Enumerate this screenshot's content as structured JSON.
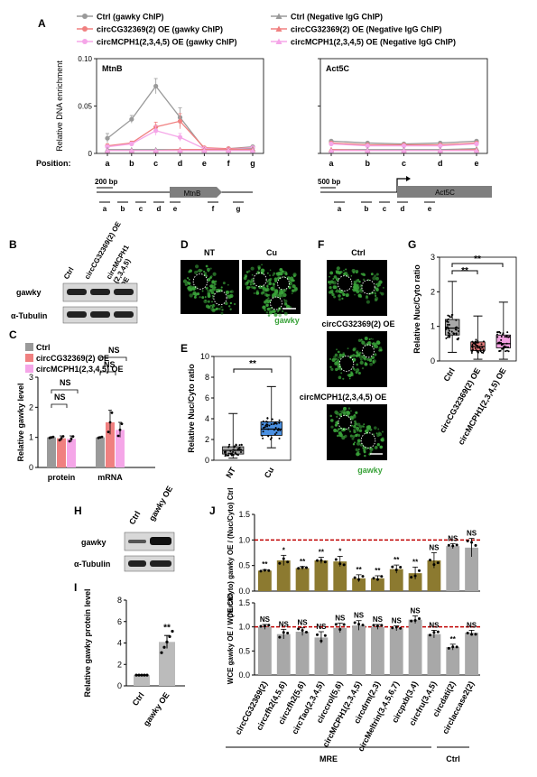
{
  "panels": {
    "A": "A",
    "B": "B",
    "C": "C",
    "D": "D",
    "E": "E",
    "F": "F",
    "G": "G",
    "H": "H",
    "I": "I",
    "J": "J"
  },
  "colors": {
    "ctrl": "#9a9a9a",
    "circ32369": "#f08080",
    "circMCPH1": "#f5a6e8",
    "gfp": "#3aa33a",
    "olive": "#8c7a30",
    "red_dash": "#c00000",
    "blue_box": "#4a90e2",
    "grey_box": "#a8a8a8",
    "pink_box": "#f2a0e0",
    "red_box": "#e77b7b"
  },
  "panelA": {
    "legend": [
      {
        "label": "Ctrl (gawky ChIP)",
        "color": "#9a9a9a",
        "marker": "circle"
      },
      {
        "label": "circCG32369(2) OE (gawky ChIP)",
        "color": "#f08080",
        "marker": "circle"
      },
      {
        "label": "circMCPH1(2,3,4,5) OE (gawky ChIP)",
        "color": "#f5a6e8",
        "marker": "circle"
      },
      {
        "label": "Ctrl (Negative IgG ChIP)",
        "color": "#9a9a9a",
        "marker": "triangle"
      },
      {
        "label": "circCG32369(2) OE (Negative IgG ChIP)",
        "color": "#f08080",
        "marker": "triangle"
      },
      {
        "label": "circMCPH1(2,3,4,5) OE (Negative IgG ChIP)",
        "color": "#f5a6e8",
        "marker": "triangle"
      }
    ],
    "position_label": "Position:",
    "scale_left": "200 bp",
    "scale_right": "500 bp",
    "gene_left": "MtnB",
    "gene_right": "Act5C"
  },
  "panelB": {
    "labels": [
      "Ctrl",
      "circCG32369(2) OE",
      "circMCPH1 (2,3,4,5) OE"
    ],
    "rows": [
      "gawky",
      "α-Tubulin"
    ]
  },
  "panelD": {
    "labels": [
      "NT",
      "Cu"
    ],
    "stain": "gawky"
  },
  "panelF": {
    "labels": [
      "Ctrl",
      "circCG32369(2) OE",
      "circMCPH1(2,3,4,5) OE"
    ],
    "stain": "gawky"
  },
  "panelH": {
    "labels": [
      "Ctrl",
      "gawky OE"
    ],
    "rows": [
      "gawky",
      "α-Tubulin"
    ]
  },
  "chart_data": [
    {
      "id": "A-left",
      "type": "line",
      "title": "MtnB",
      "ylabel": "Relative DNA enrichment",
      "ylim": [
        0,
        0.1
      ],
      "x": [
        "a",
        "b",
        "c",
        "d",
        "e",
        "f",
        "g"
      ],
      "series": [
        {
          "name": "Ctrl (gawky ChIP)",
          "values": [
            0.016,
            0.036,
            0.071,
            0.038,
            0.005,
            0.005,
            0.007
          ]
        },
        {
          "name": "circCG32369(2) OE (gawky ChIP)",
          "values": [
            0.008,
            0.011,
            0.028,
            0.034,
            0.006,
            0.005,
            0.006
          ]
        },
        {
          "name": "circMCPH1(2,3,4,5) OE (gawky ChIP)",
          "values": [
            0.007,
            0.01,
            0.024,
            0.017,
            0.005,
            0.004,
            0.006
          ]
        },
        {
          "name": "Ctrl (Negative IgG ChIP)",
          "values": [
            0.004,
            0.004,
            0.004,
            0.004,
            0.004,
            0.004,
            0.005
          ]
        },
        {
          "name": "circCG32369(2) OE (Negative IgG ChIP)",
          "values": [
            0.003,
            0.003,
            0.003,
            0.004,
            0.004,
            0.004,
            0.004
          ]
        },
        {
          "name": "circMCPH1(2,3,4,5) OE (Negative IgG ChIP)",
          "values": [
            0.003,
            0.003,
            0.003,
            0.003,
            0.003,
            0.003,
            0.003
          ]
        }
      ],
      "errors": [
        [
          0.005,
          0.004,
          0.008,
          0.01,
          0.001,
          0.001,
          0.001
        ],
        [
          0.002,
          0.002,
          0.005,
          0.008,
          0.001,
          0.001,
          0.001
        ],
        [
          0.002,
          0.002,
          0.005,
          0.004,
          0.001,
          0.001,
          0.001
        ],
        [
          0,
          0,
          0,
          0,
          0,
          0,
          0
        ],
        [
          0,
          0,
          0,
          0,
          0,
          0,
          0
        ],
        [
          0,
          0,
          0,
          0,
          0,
          0,
          0
        ]
      ],
      "yticks": [
        "0",
        "0.05",
        "0.10"
      ]
    },
    {
      "id": "A-right",
      "type": "line",
      "title": "Act5C",
      "ylim": [
        0,
        0.1
      ],
      "x": [
        "a",
        "b",
        "c",
        "d",
        "e"
      ],
      "series": [
        {
          "name": "Ctrl (gawky ChIP)",
          "values": [
            0.013,
            0.011,
            0.01,
            0.011,
            0.013
          ]
        },
        {
          "name": "circCG32369(2) OE (gawky ChIP)",
          "values": [
            0.011,
            0.009,
            0.009,
            0.009,
            0.011
          ]
        },
        {
          "name": "circMCPH1(2,3,4,5) OE (gawky ChIP)",
          "values": [
            0.01,
            0.008,
            0.008,
            0.008,
            0.01
          ]
        },
        {
          "name": "Ctrl (Negative IgG ChIP)",
          "values": [
            0.004,
            0.004,
            0.004,
            0.004,
            0.005
          ]
        },
        {
          "name": "circCG32369(2) OE (Negative IgG ChIP)",
          "values": [
            0.004,
            0.003,
            0.003,
            0.003,
            0.004
          ]
        },
        {
          "name": "circMCPH1(2,3,4,5) OE (Negative IgG ChIP)",
          "values": [
            0.003,
            0.003,
            0.003,
            0.003,
            0.003
          ]
        }
      ]
    },
    {
      "id": "C",
      "type": "bar",
      "ylabel": "Relative gawky level",
      "ylim": [
        0,
        3
      ],
      "yticks": [
        "0",
        "1",
        "2",
        "3"
      ],
      "categories": [
        "protein",
        "mRNA"
      ],
      "series": [
        {
          "name": "Ctrl",
          "values": [
            1.0,
            1.0
          ]
        },
        {
          "name": "circCG32369(2) OE",
          "values": [
            0.97,
            1.5
          ]
        },
        {
          "name": "circMCPH1(2,3,4,5) OE",
          "values": [
            0.95,
            1.25
          ]
        }
      ],
      "errors": [
        [
          0.02,
          0.02
        ],
        [
          0.08,
          0.4
        ],
        [
          0.1,
          0.25
        ]
      ],
      "annotations": [
        "NS",
        "NS",
        "NS",
        "NS"
      ]
    },
    {
      "id": "E",
      "type": "box",
      "ylabel": "Relative Nuc/Cyto ratio",
      "ylim": [
        0,
        10
      ],
      "yticks": [
        "0",
        "2",
        "4",
        "6",
        "8",
        "10"
      ],
      "categories": [
        "NT",
        "Cu"
      ],
      "boxes": [
        {
          "min": 0.2,
          "q1": 0.6,
          "median": 0.95,
          "q3": 1.3,
          "max": 4.5
        },
        {
          "min": 1.2,
          "q1": 2.4,
          "median": 3.0,
          "q3": 3.7,
          "max": 7.1
        }
      ],
      "annotations": [
        "**"
      ]
    },
    {
      "id": "G",
      "type": "box",
      "ylabel": "Relative Nuc/Cyto ratio",
      "ylim": [
        0,
        3
      ],
      "yticks": [
        "0",
        "1",
        "2",
        "3"
      ],
      "categories": [
        "Ctrl",
        "circCG32369(2) OE",
        "circMCPH1(2,3,4,5) OE"
      ],
      "boxes": [
        {
          "min": 0.25,
          "q1": 0.75,
          "median": 0.95,
          "q3": 1.2,
          "max": 2.3
        },
        {
          "min": 0.05,
          "q1": 0.3,
          "median": 0.42,
          "q3": 0.55,
          "max": 1.3
        },
        {
          "min": 0.05,
          "q1": 0.38,
          "median": 0.5,
          "q3": 0.75,
          "max": 1.7
        }
      ],
      "annotations": [
        "**",
        "**"
      ]
    },
    {
      "id": "I",
      "type": "bar",
      "ylabel": "Relative gawky protein level",
      "ylim": [
        0,
        8
      ],
      "yticks": [
        "0",
        "2",
        "4",
        "6",
        "8"
      ],
      "categories": [
        "Ctrl",
        "gawky OE"
      ],
      "values": [
        1.0,
        4.1
      ],
      "errors": [
        0.0,
        0.6
      ],
      "annotations": [
        "**"
      ]
    },
    {
      "id": "J-top",
      "type": "bar",
      "ylabel": "(Nuc/Cyto) gawky OE / (Nuc/Cyto) Ctrl",
      "ylim": [
        0,
        1.5
      ],
      "yticks": [
        "0.0",
        "0.5",
        "1.0",
        "1.5"
      ],
      "categories": [
        "circCG32369(2)",
        "circzfh2(4,5,6)",
        "circzfh2(5,6)",
        "circTao(2,3,4,5)",
        "circcrol(5,6)",
        "circMCPH1(2,3,4,5)",
        "circdrm(2,3)",
        "circMeltrin(3,4,5,6,7)",
        "circpxb(3,4)",
        "circfru(3,4,5)",
        "circdati(2)",
        "circlaccase2(2)"
      ],
      "values": [
        0.4,
        0.6,
        0.45,
        0.6,
        0.58,
        0.25,
        0.25,
        0.43,
        0.35,
        0.6,
        0.88,
        0.85
      ],
      "errors": [
        0.02,
        0.1,
        0.03,
        0.06,
        0.1,
        0.07,
        0.05,
        0.08,
        0.12,
        0.15,
        0.05,
        0.18
      ],
      "annotations": [
        "**",
        "*",
        "**",
        "**",
        "*",
        "**",
        "**",
        "**",
        "**",
        "NS",
        "NS",
        "NS"
      ],
      "reference_line": 1.0
    },
    {
      "id": "J-bottom",
      "type": "bar",
      "ylabel": "WCE gawky OE / WCE Ctrl",
      "ylim": [
        0,
        1.5
      ],
      "yticks": [
        "0.0",
        "0.5",
        "1.0",
        "1.5"
      ],
      "categories": [
        "circCG32369(2)",
        "circzfh2(4,5,6)",
        "circzfh2(5,6)",
        "circTao(2,3,4,5)",
        "circcrol(5,6)",
        "circMCPH1(2,3,4,5)",
        "circdrm(2,3)",
        "circMeltrin(3,4,5,6,7)",
        "circpxb(3,4)",
        "circfru(3,4,5)",
        "circdati(2)",
        "circlaccase2(2)"
      ],
      "values": [
        1.0,
        0.85,
        0.9,
        0.78,
        0.98,
        1.03,
        1.0,
        0.97,
        1.15,
        0.85,
        0.58,
        0.88
      ],
      "errors": [
        0.05,
        0.1,
        0.08,
        0.12,
        0.1,
        0.1,
        0.05,
        0.05,
        0.08,
        0.08,
        0.06,
        0.05
      ],
      "annotations": [
        "NS",
        "NS",
        "NS",
        "NS",
        "NS",
        "NS",
        "NS",
        "NS",
        "NS",
        "NS",
        "**",
        "NS"
      ],
      "reference_line": 1.0,
      "group_labels": [
        "MRE",
        "Ctrl"
      ]
    }
  ]
}
